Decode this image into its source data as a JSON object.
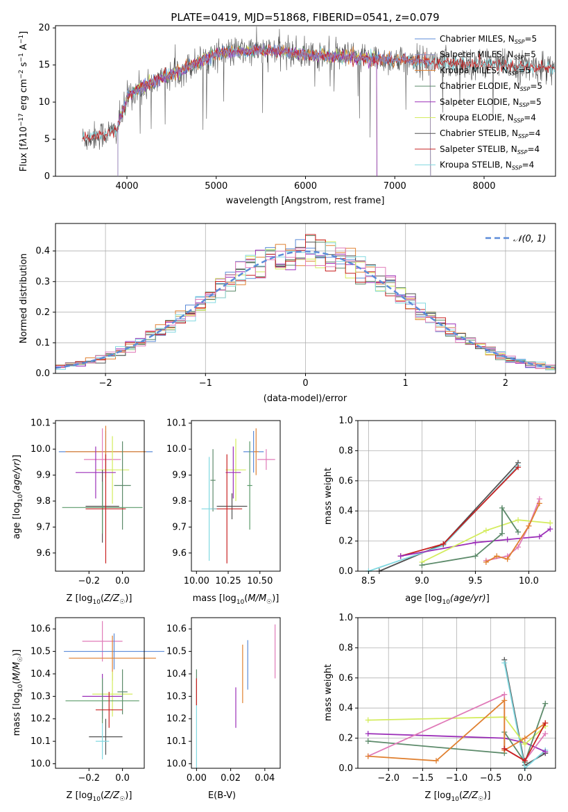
{
  "figure": {
    "title": "PLATE=0419, MJD=51868, FIBERID=0541, z=0.079"
  },
  "colors": {
    "gray": "#808080",
    "cyan": "#80d8e0",
    "yellowgreen": "#d4ec5e",
    "orange": "#e08030",
    "purple": "#9b2eb8",
    "darkgreen": "#5c8a6a",
    "red": "#c82020",
    "blue": "#5b8bd8",
    "pink": "#e07ab8",
    "green": "#5a9a6a"
  },
  "chart_data": [
    {
      "id": "spectrum",
      "type": "line",
      "xlabel": "wavelength [Angstrom, rest frame]",
      "ylabel": "Flux [f_λ 10^-17 erg cm^-2 s^-1 A^-1]",
      "xlim": [
        3200,
        8800
      ],
      "ylim": [
        0,
        20.3
      ],
      "xticks": [
        "4000",
        "5000",
        "6000",
        "7000",
        "8000"
      ],
      "yticks": [
        "0",
        "5",
        "10",
        "15",
        "20"
      ],
      "legend_position": "top-right",
      "series": [
        {
          "name": "Chabrier MILES, N_SSP=5",
          "color": "#5b8bd8",
          "range": [
            3900,
            7400
          ]
        },
        {
          "name": "Salpeter MILES, N_SSP=5",
          "color": "#9090c0",
          "range": [
            3900,
            7400
          ]
        },
        {
          "name": "Kroupa MILES, N_SSP=5",
          "color": "#e08030",
          "range": [
            3900,
            7400
          ]
        },
        {
          "name": "Chabrier ELODIE, N_SSP=5",
          "color": "#5c8a6a",
          "range": [
            3900,
            6800
          ]
        },
        {
          "name": "Salpeter ELODIE, N_SSP=5",
          "color": "#9b2eb8",
          "range": [
            3900,
            6800
          ]
        },
        {
          "name": "Kroupa ELODIE, N_SSP=4",
          "color": "#d4ec5e",
          "range": [
            3900,
            6800
          ]
        },
        {
          "name": "Chabrier STELIB, N_SSP=4",
          "color": "#505050",
          "range": [
            3500,
            8800
          ]
        },
        {
          "name": "Salpeter STELIB, N_SSP=4",
          "color": "#c82020",
          "range": [
            3500,
            8800
          ]
        },
        {
          "name": "Kroupa STELIB, N_SSP=4",
          "color": "#80d8e0",
          "range": [
            3500,
            8800
          ]
        }
      ]
    },
    {
      "id": "residuals",
      "type": "bar",
      "xlabel": "(data-model)/error",
      "ylabel": "Normed distribution",
      "xlim": [
        -2.5,
        2.5
      ],
      "ylim": [
        0,
        0.49
      ],
      "xticks": [
        "−2",
        "−1",
        "0",
        "1",
        "2"
      ],
      "yticks": [
        "0.0",
        "0.1",
        "0.2",
        "0.3",
        "0.4"
      ],
      "grid": true,
      "legend_position": "top-right",
      "legend_label": "N(0,1)",
      "reference_curve": "normal(0,1)"
    },
    {
      "id": "age-vs-Z",
      "type": "scatter",
      "xlabel": "Z [log10(Z/Z☉)]",
      "ylabel": "age  [log10(age/yr)]",
      "xlim": [
        -0.4,
        0.13
      ],
      "ylim": [
        9.53,
        10.11
      ],
      "xticks": [
        "−0.2",
        "0.0"
      ],
      "yticks": [
        "9.6",
        "9.7",
        "9.8",
        "9.9",
        "10.0",
        "10.1"
      ],
      "points": [
        {
          "x": -0.1,
          "y": 9.99,
          "xerr": 0.28,
          "yerr": 0.08,
          "color": "#5b8bd8"
        },
        {
          "x": -0.1,
          "y": 9.99,
          "xerr": 0.24,
          "yerr": 0.1,
          "color": "#e08030"
        },
        {
          "x": -0.12,
          "y": 9.96,
          "xerr": 0.11,
          "yerr": 0.12,
          "color": "#e07ab8"
        },
        {
          "x": -0.06,
          "y": 9.92,
          "xerr": 0.1,
          "yerr": 0.13,
          "color": "#d4ec5e"
        },
        {
          "x": -0.16,
          "y": 9.91,
          "xerr": 0.12,
          "yerr": 0.1,
          "color": "#9b2eb8"
        },
        {
          "x": 0.0,
          "y": 9.86,
          "xerr": 0.05,
          "yerr": 0.17,
          "color": "#5c8a6a"
        },
        {
          "x": -0.12,
          "y": 9.78,
          "xerr": 0.1,
          "yerr": 0.14,
          "color": "#505050"
        },
        {
          "x": -0.12,
          "y": 9.775,
          "xerr": 0.24,
          "yerr": 0.1,
          "color": "#5a9a6a"
        },
        {
          "x": -0.1,
          "y": 9.77,
          "xerr": 0.12,
          "yerr": 0.21,
          "color": "#c82020"
        }
      ]
    },
    {
      "id": "age-vs-mass",
      "type": "scatter",
      "xlabel": "mass [log10(M/M☉)]",
      "ylabel": "",
      "xlim": [
        9.96,
        10.66
      ],
      "ylim": [
        9.53,
        10.11
      ],
      "xticks": [
        "10.00",
        "10.25",
        "10.50"
      ],
      "yticks": [
        "9.6",
        "9.7",
        "9.8",
        "9.9",
        "10.0",
        "10.1"
      ],
      "points": [
        {
          "x": 10.45,
          "y": 9.99,
          "xerr": 0.08,
          "yerr": 0.08,
          "color": "#5b8bd8"
        },
        {
          "x": 10.47,
          "y": 9.99,
          "xerr": 0.02,
          "yerr": 0.09,
          "color": "#e08030"
        },
        {
          "x": 10.55,
          "y": 9.96,
          "xerr": 0.07,
          "yerr": 0.04,
          "color": "#e07ab8"
        },
        {
          "x": 10.31,
          "y": 9.92,
          "xerr": 0.08,
          "yerr": 0.12,
          "color": "#d4ec5e"
        },
        {
          "x": 10.29,
          "y": 9.91,
          "xerr": 0.06,
          "yerr": 0.1,
          "color": "#9b2eb8"
        },
        {
          "x": 10.13,
          "y": 9.88,
          "xerr": 0.02,
          "yerr": 0.12,
          "color": "#5c8a6a"
        },
        {
          "x": 10.42,
          "y": 9.86,
          "xerr": 0.02,
          "yerr": 0.17,
          "color": "#5a9a6a"
        },
        {
          "x": 10.28,
          "y": 9.78,
          "xerr": 0.12,
          "yerr": 0.05,
          "color": "#505050"
        },
        {
          "x": 10.24,
          "y": 9.77,
          "xerr": 0.12,
          "yerr": 0.21,
          "color": "#c82020"
        },
        {
          "x": 10.1,
          "y": 9.77,
          "xerr": 0.06,
          "yerr": 0.2,
          "color": "#80d8e0"
        }
      ]
    },
    {
      "id": "mass-weight-vs-age",
      "type": "line",
      "xlabel": "age  [log10(age/yr)]",
      "ylabel": "mass weight",
      "xlim": [
        8.4,
        10.25
      ],
      "ylim": [
        0,
        1.0
      ],
      "xticks": [
        "8.5",
        "9.0",
        "9.5",
        "10.0"
      ],
      "yticks": [
        "0.0",
        "0.2",
        "0.4",
        "0.6",
        "0.8",
        "1.0"
      ],
      "grid": true,
      "series": [
        {
          "name": "",
          "color": "#505050",
          "x": [
            8.6,
            9.2,
            9.9
          ],
          "y": [
            0.0,
            0.18,
            0.72
          ]
        },
        {
          "name": "",
          "color": "#80d8e0",
          "x": [
            8.5,
            9.2,
            9.9
          ],
          "y": [
            0.0,
            0.17,
            0.7
          ]
        },
        {
          "name": "",
          "color": "#c82020",
          "x": [
            8.8,
            9.2,
            9.9
          ],
          "y": [
            0.1,
            0.18,
            0.69
          ]
        },
        {
          "name": "",
          "color": "#9b2eb8",
          "x": [
            8.8,
            9.5,
            9.8,
            10.1,
            10.2
          ],
          "y": [
            0.1,
            0.19,
            0.21,
            0.23,
            0.28
          ]
        },
        {
          "name": "",
          "color": "#d4ec5e",
          "x": [
            9.0,
            9.6,
            9.9,
            10.2
          ],
          "y": [
            0.06,
            0.27,
            0.34,
            0.32
          ]
        },
        {
          "name": "",
          "color": "#5c8a6a",
          "x": [
            9.0,
            9.5,
            9.75,
            9.75,
            9.9
          ],
          "y": [
            0.04,
            0.1,
            0.25,
            0.42,
            0.26
          ]
        },
        {
          "name": "",
          "color": "#e07ab8",
          "x": [
            9.6,
            9.8,
            9.9,
            10.0,
            10.1
          ],
          "y": [
            0.07,
            0.1,
            0.16,
            0.3,
            0.48
          ]
        },
        {
          "name": "",
          "color": "#e08030",
          "x": [
            9.6,
            9.7,
            9.8,
            10.0,
            10.1
          ],
          "y": [
            0.06,
            0.1,
            0.08,
            0.3,
            0.45
          ]
        }
      ]
    },
    {
      "id": "mass-vs-Z",
      "type": "scatter",
      "xlabel": "Z [log10(Z/Z☉)]",
      "ylabel": "mass [log10(M/M☉)]",
      "xlim": [
        -0.4,
        0.13
      ],
      "ylim": [
        9.98,
        10.65
      ],
      "xticks": [
        "−0.2",
        "0.0"
      ],
      "yticks": [
        "10.0",
        "10.1",
        "10.2",
        "10.3",
        "10.4",
        "10.5",
        "10.6"
      ],
      "points": [
        {
          "x": -0.12,
          "y": 10.545,
          "xerr": 0.12,
          "yerr": 0.09,
          "color": "#e07ab8"
        },
        {
          "x": -0.05,
          "y": 10.5,
          "xerr": 0.3,
          "yerr": 0.08,
          "color": "#5b8bd8"
        },
        {
          "x": -0.06,
          "y": 10.47,
          "xerr": 0.26,
          "yerr": 0.1,
          "color": "#e08030"
        },
        {
          "x": -0.06,
          "y": 10.31,
          "xerr": 0.12,
          "yerr": 0.1,
          "color": "#d4ec5e"
        },
        {
          "x": -0.12,
          "y": 10.3,
          "xerr": 0.12,
          "yerr": 0.1,
          "color": "#9b2eb8"
        },
        {
          "x": 0.0,
          "y": 10.32,
          "xerr": 0.03,
          "yerr": 0.1,
          "color": "#5c8a6a"
        },
        {
          "x": -0.12,
          "y": 10.28,
          "xerr": 0.22,
          "yerr": 0.1,
          "color": "#5a9a6a"
        },
        {
          "x": -0.08,
          "y": 10.24,
          "xerr": 0.08,
          "yerr": 0.08,
          "color": "#c82020"
        },
        {
          "x": -0.1,
          "y": 10.12,
          "xerr": 0.1,
          "yerr": 0.08,
          "color": "#505050"
        },
        {
          "x": -0.12,
          "y": 10.1,
          "xerr": 0.04,
          "yerr": 0.08,
          "color": "#80d8e0"
        }
      ]
    },
    {
      "id": "mass-vs-EBV",
      "type": "scatter",
      "xlabel": "E(B-V)",
      "ylabel": "",
      "xlim": [
        -0.003,
        0.049
      ],
      "ylim": [
        9.98,
        10.65
      ],
      "xticks": [
        "0.00",
        "0.02",
        "0.04"
      ],
      "yticks": [
        "10.0",
        "10.1",
        "10.2",
        "10.3",
        "10.4",
        "10.5",
        "10.6"
      ],
      "points": [
        {
          "x": 0.046,
          "y": 10.5,
          "xerr": 0,
          "yerr": 0.12,
          "color": "#e07ab8"
        },
        {
          "x": 0.03,
          "y": 10.44,
          "xerr": 0,
          "yerr": 0.11,
          "color": "#5b8bd8"
        },
        {
          "x": 0.027,
          "y": 10.4,
          "xerr": 0,
          "yerr": 0.13,
          "color": "#e08030"
        },
        {
          "x": 0.023,
          "y": 10.25,
          "xerr": 0,
          "yerr": 0.09,
          "color": "#9b2eb8"
        },
        {
          "x": 0.0,
          "y": 10.34,
          "xerr": 0,
          "yerr": 0.08,
          "color": "#5c8a6a"
        },
        {
          "x": 0.0,
          "y": 10.32,
          "xerr": 0,
          "yerr": 0.06,
          "color": "#c82020"
        },
        {
          "x": 0.0,
          "y": 10.12,
          "xerr": 0,
          "yerr": 0.14,
          "color": "#80d8e0"
        }
      ]
    },
    {
      "id": "mass-weight-vs-Z",
      "type": "line",
      "xlabel": "Z [log10(Z/Z☉)]",
      "ylabel": "mass weight",
      "xlim": [
        -2.45,
        0.45
      ],
      "ylim": [
        0,
        1.0
      ],
      "xticks": [
        "−2.0",
        "−1.5",
        "−1.0",
        "−0.5",
        "0.0"
      ],
      "yticks": [
        "0.0",
        "0.2",
        "0.4",
        "0.6",
        "0.8",
        "1.0"
      ],
      "grid": true,
      "series": [
        {
          "name": "",
          "color": "#505050",
          "x": [
            -0.3,
            0.0,
            0.3
          ],
          "y": [
            0.72,
            0.02,
            0.1
          ]
        },
        {
          "name": "",
          "color": "#80d8e0",
          "x": [
            -0.3,
            0.0,
            0.3
          ],
          "y": [
            0.7,
            0.0,
            0.12
          ]
        },
        {
          "name": "",
          "color": "#9b2eb8",
          "x": [
            -2.3,
            -0.3,
            0.0,
            0.3
          ],
          "y": [
            0.23,
            0.2,
            0.17,
            0.11
          ]
        },
        {
          "name": "",
          "color": "#d4ec5e",
          "x": [
            -2.3,
            -0.3,
            0.0,
            0.3
          ],
          "y": [
            0.32,
            0.34,
            0.16,
            0.28
          ]
        },
        {
          "name": "",
          "color": "#5c8a6a",
          "x": [
            -2.3,
            -0.3,
            -0.3,
            0.0,
            0.3
          ],
          "y": [
            0.18,
            0.1,
            0.24,
            0.04,
            0.43
          ]
        },
        {
          "name": "",
          "color": "#e07ab8",
          "x": [
            -2.3,
            -0.3,
            -0.3,
            0.0,
            0.3
          ],
          "y": [
            0.08,
            0.49,
            0.13,
            0.05,
            0.23
          ]
        },
        {
          "name": "",
          "color": "#e08030",
          "x": [
            -2.3,
            -1.3,
            -0.3,
            -0.3,
            0.0,
            0.3
          ],
          "y": [
            0.08,
            0.05,
            0.45,
            0.12,
            0.2,
            0.3
          ]
        },
        {
          "name": "",
          "color": "#c82020",
          "x": [
            -0.3,
            0.0,
            0.3
          ],
          "y": [
            0.13,
            0.05,
            0.3
          ]
        }
      ]
    }
  ]
}
